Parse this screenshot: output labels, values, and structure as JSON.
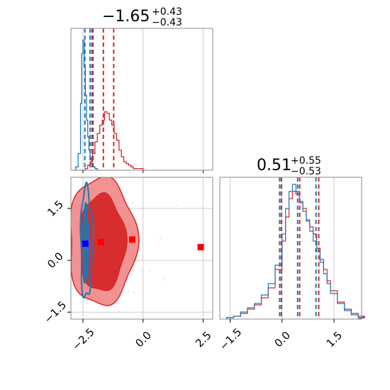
{
  "colors": {
    "blue": "#1f77b4",
    "red": "#d62728",
    "red_fill_light": "#f08080",
    "red_fill_dark": "#d62728",
    "marker_blue": "#0000ff",
    "marker_red": "#ff0000",
    "grid": "#cccccc",
    "frame": "#888888"
  },
  "titles": {
    "p1_main": "−1.65",
    "p1_sup": "+0.43",
    "p1_sub": "−0.43",
    "p2_main": "0.51",
    "p2_sup": "+0.55",
    "p2_sub": "−0.53"
  },
  "chart_data": [
    {
      "type": "histogram",
      "panel": "top-left",
      "xlim": [
        -3.0,
        2.9
      ],
      "series": [
        {
          "color": "blue",
          "x": [
            -2.9,
            -2.8,
            -2.7,
            -2.6,
            -2.55,
            -2.5,
            -2.45,
            -2.4,
            -2.35,
            -2.3,
            -2.25,
            -2.2,
            -2.15,
            -2.1,
            -2.0,
            -1.9
          ],
          "values": [
            0,
            0.02,
            0.1,
            0.4,
            0.7,
            0.78,
            0.62,
            0.45,
            0.3,
            0.2,
            0.12,
            0.07,
            0.04,
            0.02,
            0.01,
            0
          ],
          "quantiles": [
            -2.42,
            -2.2,
            -2.12
          ]
        },
        {
          "color": "red",
          "x": [
            -2.6,
            -2.4,
            -2.3,
            -2.2,
            -2.1,
            -2.0,
            -1.9,
            -1.8,
            -1.7,
            -1.6,
            -1.5,
            -1.4,
            -1.3,
            -1.2,
            -1.1,
            -1.0,
            -0.9,
            -0.8,
            -0.7,
            -0.6,
            -0.5,
            -0.4,
            -0.3,
            -0.2,
            -0.1,
            0.0
          ],
          "values": [
            0,
            0.01,
            0.03,
            0.05,
            0.1,
            0.17,
            0.22,
            0.27,
            0.3,
            0.35,
            0.34,
            0.3,
            0.27,
            0.22,
            0.18,
            0.12,
            0.08,
            0.05,
            0.04,
            0.03,
            0.02,
            0.01,
            0.01,
            0.01,
            0.01,
            0
          ],
          "quantiles": [
            -2.08,
            -1.65,
            -1.22
          ]
        }
      ]
    },
    {
      "type": "scatter",
      "panel": "bottom-left",
      "xlim": [
        -3.0,
        2.9
      ],
      "ylim": [
        -1.7,
        2.4
      ],
      "x_ticks": [
        "−2.5",
        "0.0",
        "2.5"
      ],
      "x_tick_values": [
        -2.5,
        0.0,
        2.5
      ],
      "y_ticks": [
        "−1.5",
        "0.0",
        "1.5"
      ],
      "y_tick_values": [
        -1.5,
        0.0,
        1.5
      ],
      "contours": [
        {
          "color": "red",
          "level": "outer",
          "center": [
            -1.7,
            0.55
          ],
          "rx": 1.4,
          "ry": 1.85
        },
        {
          "color": "red",
          "level": "inner",
          "center": [
            -1.7,
            0.5
          ],
          "rx": 0.95,
          "ry": 1.4
        },
        {
          "color": "blue",
          "level": "outer",
          "center": [
            -2.35,
            0.5
          ],
          "rx": 0.25,
          "ry": 1.6
        },
        {
          "color": "blue",
          "level": "inner",
          "center": [
            -2.38,
            0.45
          ],
          "rx": 0.12,
          "ry": 1.1
        }
      ],
      "markers": [
        {
          "color": "marker_blue",
          "x": -2.4,
          "y": 0.48
        },
        {
          "color": "marker_red",
          "x": -1.75,
          "y": 0.52
        },
        {
          "color": "marker_red",
          "x": -0.45,
          "y": 0.6
        },
        {
          "color": "marker_red",
          "x": 2.4,
          "y": 0.38
        }
      ]
    },
    {
      "type": "histogram",
      "panel": "bottom-right",
      "xlim": [
        -1.8,
        2.3
      ],
      "x_ticks": [
        "−1.5",
        "0.0",
        "1.5"
      ],
      "x_tick_values": [
        -1.5,
        0.0,
        1.5
      ],
      "series": [
        {
          "color": "red",
          "x": [
            -1.6,
            -1.4,
            -1.2,
            -1.0,
            -0.8,
            -0.6,
            -0.4,
            -0.2,
            0.0,
            0.1,
            0.2,
            0.3,
            0.4,
            0.5,
            0.6,
            0.7,
            0.8,
            0.9,
            1.0,
            1.1,
            1.2,
            1.3,
            1.4,
            1.6,
            1.8,
            2.0,
            2.2
          ],
          "values": [
            0.01,
            0.02,
            0.04,
            0.07,
            0.1,
            0.15,
            0.22,
            0.35,
            0.55,
            0.72,
            0.85,
            0.9,
            0.88,
            0.82,
            0.78,
            0.7,
            0.65,
            0.6,
            0.5,
            0.42,
            0.35,
            0.27,
            0.2,
            0.12,
            0.07,
            0.04,
            0.02
          ],
          "quantiles": [
            -0.02,
            0.51,
            1.06
          ]
        },
        {
          "color": "blue",
          "x": [
            -1.6,
            -1.4,
            -1.2,
            -1.0,
            -0.8,
            -0.6,
            -0.4,
            -0.2,
            0.0,
            0.1,
            0.2,
            0.3,
            0.4,
            0.5,
            0.6,
            0.7,
            0.8,
            0.9,
            1.0,
            1.1,
            1.2,
            1.3,
            1.4,
            1.6,
            1.8,
            2.0,
            2.2
          ],
          "values": [
            0.01,
            0.02,
            0.05,
            0.08,
            0.11,
            0.17,
            0.25,
            0.38,
            0.6,
            0.78,
            0.9,
            0.95,
            0.9,
            0.83,
            0.76,
            0.69,
            0.62,
            0.55,
            0.48,
            0.4,
            0.32,
            0.25,
            0.18,
            0.11,
            0.06,
            0.03,
            0.01
          ],
          "quantiles": [
            -0.07,
            0.45,
            0.98
          ]
        }
      ]
    }
  ]
}
